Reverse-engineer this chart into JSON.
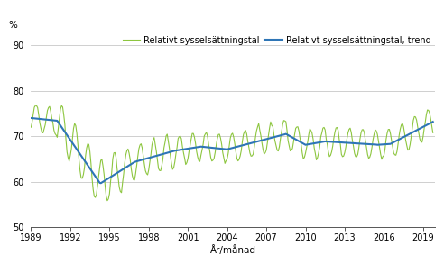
{
  "title": "",
  "ylabel": "%",
  "xlabel": "År/månad",
  "legend1": "Relativt sysselsättningstal",
  "legend2": "Relativt sysselsättningstal, trend",
  "line1_color": "#8dc63f",
  "line2_color": "#2e75b6",
  "ylim": [
    50,
    93
  ],
  "yticks": [
    50,
    60,
    70,
    80,
    90
  ],
  "xticks": [
    1989,
    1992,
    1995,
    1998,
    2001,
    2004,
    2007,
    2010,
    2013,
    2016,
    2019
  ],
  "background_color": "#ffffff",
  "grid_color": "#c8c8c8"
}
